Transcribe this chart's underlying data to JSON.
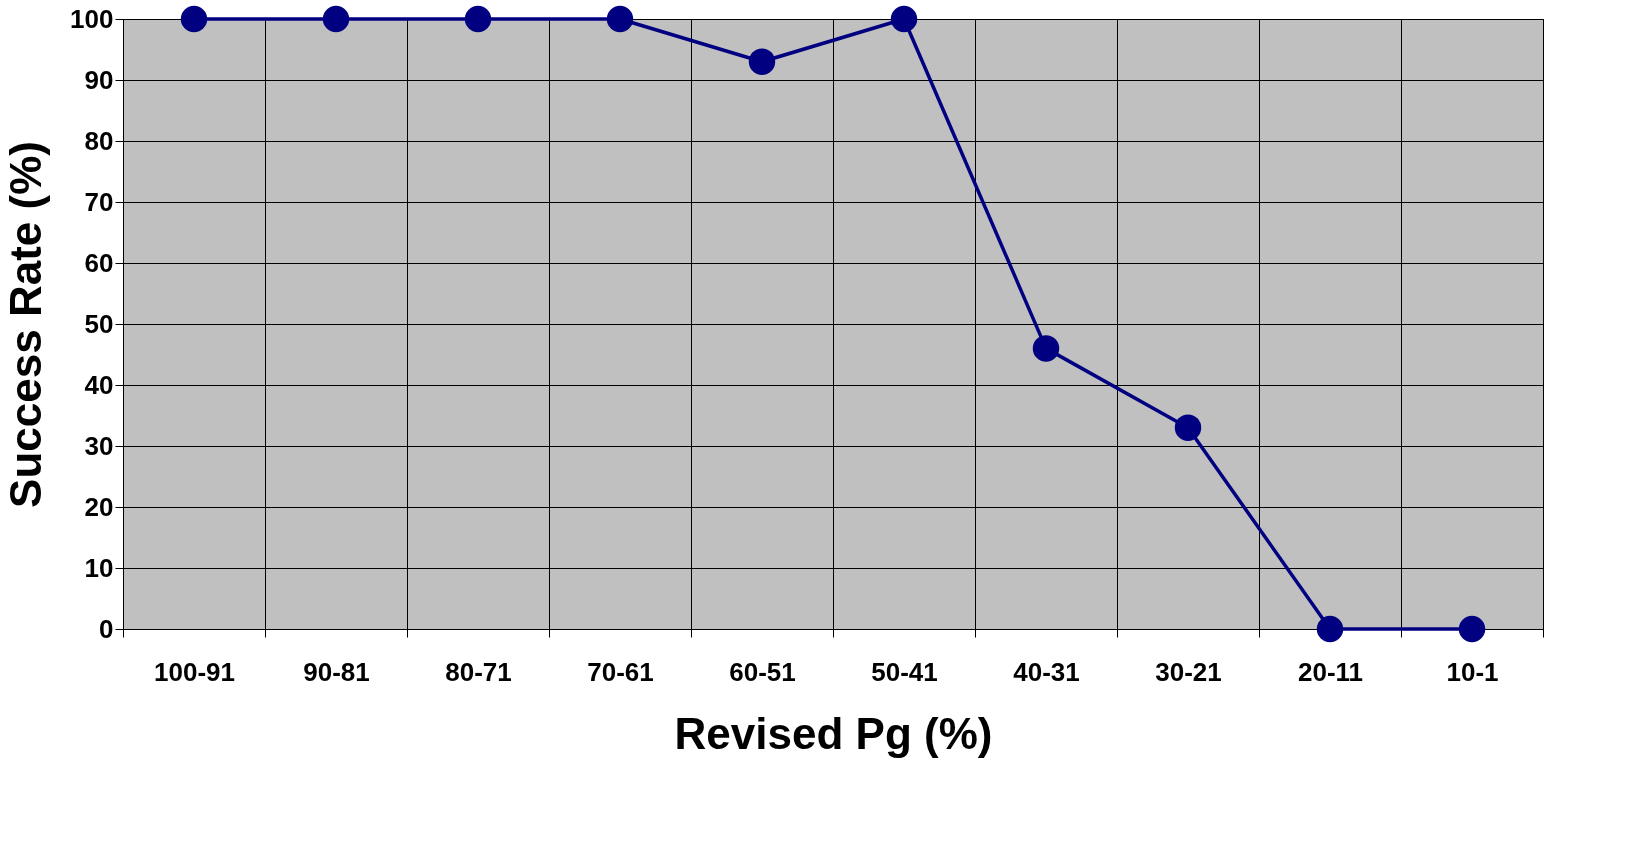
{
  "chart_data": {
    "type": "line",
    "xlabel": "Revised Pg (%)",
    "ylabel": "Success Rate (%)",
    "categories": [
      "100-91",
      "90-81",
      "80-71",
      "70-61",
      "60-51",
      "50-41",
      "40-31",
      "30-21",
      "20-11",
      "10-1"
    ],
    "series": [
      {
        "color": "#000080",
        "values": [
          100,
          100,
          100,
          100,
          93,
          100,
          46,
          33,
          0,
          0
        ]
      }
    ],
    "ylim": [
      0,
      100
    ],
    "yticks": [
      0,
      10,
      20,
      30,
      40,
      50,
      60,
      70,
      80,
      90,
      100
    ],
    "grid": true,
    "marker": "circle",
    "line_style": "solid",
    "legend": false
  }
}
